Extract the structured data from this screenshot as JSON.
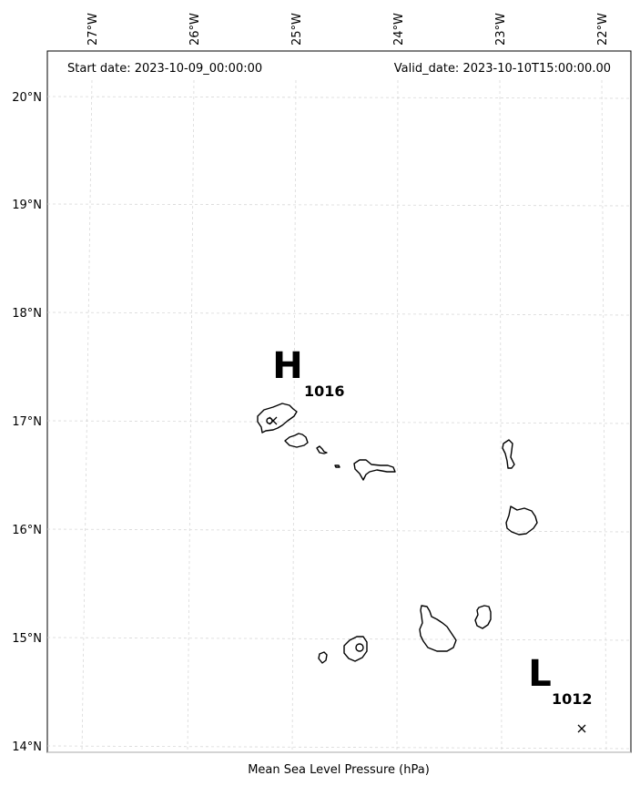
{
  "header": {
    "start_date": "Start date: 2023-10-09_00:00:00",
    "valid_date": "Valid_date: 2023-10-10T15:00:00.00"
  },
  "caption": "Mean Sea Level Pressure (hPa)",
  "lon_ticks": [
    "27°W",
    "26°W",
    "25°W",
    "24°W",
    "23°W",
    "22°W"
  ],
  "lat_ticks": [
    "20°N",
    "19°N",
    "18°N",
    "17°N",
    "16°N",
    "15°N",
    "14°N"
  ],
  "pressure_centers": [
    {
      "type": "H",
      "value": "1016",
      "lon": -25.2,
      "lat": 17.0
    },
    {
      "type": "L",
      "value": "1012",
      "lon": -22.2,
      "lat": 14.15
    }
  ]
}
